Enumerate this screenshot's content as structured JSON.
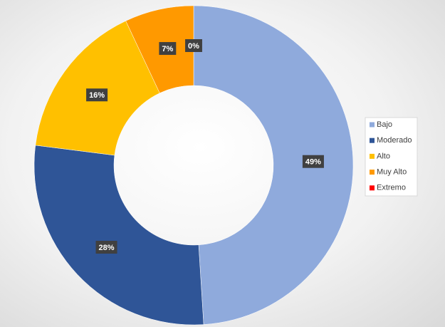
{
  "chart_data": {
    "type": "donut",
    "categories": [
      "Bajo",
      "Moderado",
      "Alto",
      "Muy Alto",
      "Extremo"
    ],
    "values": [
      49,
      28,
      16,
      7,
      0
    ],
    "value_labels": [
      "49%",
      "28%",
      "16%",
      "7%",
      "0%"
    ],
    "colors": [
      "#8faadc",
      "#2f5597",
      "#ffc000",
      "#ff9900",
      "#ff0000"
    ],
    "legend": "right"
  }
}
